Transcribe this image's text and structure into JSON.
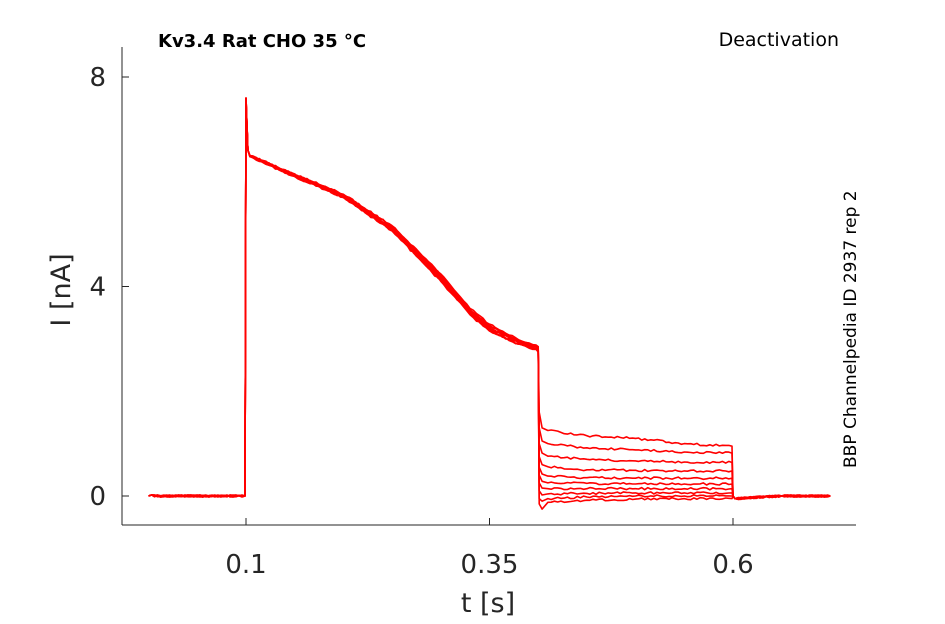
{
  "title_left": "Kv3.4  Rat  CHO  35 °C",
  "title_right": "Deactivation",
  "side_label": "BBP Channelpedia ID 2937 rep 2",
  "colors": {
    "trace": "#ff0000",
    "axis": "#262626"
  },
  "chart_data": {
    "type": "line",
    "xlabel": "t [s]",
    "ylabel": "I [nA]",
    "xlim": [
      -0.03,
      0.72
    ],
    "ylim": [
      -0.6,
      8.6
    ],
    "xticks": [
      0.1,
      0.35,
      0.6
    ],
    "xtick_labels": [
      "0.1",
      "0.35",
      "0.6"
    ],
    "yticks": [
      0,
      4,
      8
    ],
    "ytick_labels": [
      "0",
      "4",
      "8"
    ],
    "grid": false,
    "legend": "none",
    "series": [
      {
        "x": [
          0.0,
          0.099,
          0.1,
          0.102,
          0.104,
          0.15,
          0.2,
          0.25,
          0.3,
          0.33,
          0.35,
          0.38,
          0.398,
          0.4,
          0.401,
          0.404,
          0.41,
          0.45,
          0.5,
          0.55,
          0.599,
          0.6,
          0.602,
          0.65,
          0.7
        ],
        "y": [
          0.0,
          0.0,
          7.6,
          6.6,
          6.5,
          6.15,
          5.75,
          5.15,
          4.2,
          3.55,
          3.25,
          2.95,
          2.85,
          2.8,
          1.6,
          1.3,
          1.25,
          1.15,
          1.1,
          1.0,
          0.95,
          0.0,
          -0.05,
          0.0,
          0.0
        ]
      },
      {
        "x": [
          0.0,
          0.099,
          0.1,
          0.102,
          0.104,
          0.15,
          0.2,
          0.25,
          0.3,
          0.33,
          0.35,
          0.38,
          0.398,
          0.4,
          0.401,
          0.404,
          0.41,
          0.45,
          0.5,
          0.55,
          0.599,
          0.6,
          0.602,
          0.65,
          0.7
        ],
        "y": [
          0.0,
          0.0,
          7.5,
          6.6,
          6.5,
          6.12,
          5.72,
          5.1,
          4.15,
          3.5,
          3.2,
          2.95,
          2.85,
          2.8,
          1.3,
          1.05,
          1.0,
          0.92,
          0.88,
          0.84,
          0.82,
          0.0,
          -0.05,
          0.0,
          0.0
        ]
      },
      {
        "x": [
          0.0,
          0.099,
          0.1,
          0.102,
          0.104,
          0.15,
          0.2,
          0.25,
          0.3,
          0.33,
          0.35,
          0.38,
          0.398,
          0.4,
          0.401,
          0.404,
          0.41,
          0.45,
          0.5,
          0.55,
          0.599,
          0.6,
          0.602,
          0.65,
          0.7
        ],
        "y": [
          0.0,
          0.0,
          7.6,
          6.6,
          6.48,
          6.1,
          5.7,
          5.08,
          4.12,
          3.48,
          3.15,
          2.9,
          2.8,
          2.75,
          1.0,
          0.82,
          0.76,
          0.7,
          0.67,
          0.65,
          0.64,
          0.0,
          -0.05,
          0.0,
          0.0
        ]
      },
      {
        "x": [
          0.0,
          0.099,
          0.1,
          0.102,
          0.104,
          0.15,
          0.2,
          0.25,
          0.3,
          0.33,
          0.35,
          0.38,
          0.398,
          0.4,
          0.401,
          0.404,
          0.41,
          0.45,
          0.5,
          0.55,
          0.599,
          0.6,
          0.602,
          0.65,
          0.7
        ],
        "y": [
          0.0,
          0.0,
          7.55,
          6.6,
          6.5,
          6.12,
          5.74,
          5.12,
          4.18,
          3.52,
          3.22,
          2.95,
          2.85,
          2.8,
          0.75,
          0.6,
          0.56,
          0.5,
          0.49,
          0.48,
          0.48,
          0.0,
          -0.05,
          0.0,
          0.0
        ]
      },
      {
        "x": [
          0.0,
          0.099,
          0.1,
          0.102,
          0.104,
          0.15,
          0.2,
          0.25,
          0.3,
          0.33,
          0.35,
          0.38,
          0.398,
          0.4,
          0.401,
          0.404,
          0.41,
          0.45,
          0.5,
          0.55,
          0.599,
          0.6,
          0.602,
          0.65,
          0.7
        ],
        "y": [
          0.0,
          0.0,
          7.6,
          6.6,
          6.5,
          6.14,
          5.75,
          5.14,
          4.22,
          3.56,
          3.26,
          2.98,
          2.88,
          2.85,
          0.55,
          0.42,
          0.38,
          0.35,
          0.34,
          0.34,
          0.34,
          0.0,
          -0.05,
          0.0,
          0.0
        ]
      },
      {
        "x": [
          0.0,
          0.099,
          0.1,
          0.102,
          0.104,
          0.15,
          0.2,
          0.25,
          0.3,
          0.33,
          0.35,
          0.38,
          0.398,
          0.4,
          0.401,
          0.404,
          0.41,
          0.45,
          0.5,
          0.55,
          0.599,
          0.6,
          0.602,
          0.65,
          0.7
        ],
        "y": [
          0.0,
          0.0,
          7.5,
          6.6,
          6.48,
          6.1,
          5.7,
          5.06,
          4.1,
          3.46,
          3.15,
          2.9,
          2.8,
          2.75,
          0.4,
          0.28,
          0.25,
          0.24,
          0.23,
          0.23,
          0.23,
          0.0,
          -0.05,
          0.0,
          0.0
        ]
      },
      {
        "x": [
          0.0,
          0.099,
          0.1,
          0.102,
          0.104,
          0.15,
          0.2,
          0.25,
          0.3,
          0.33,
          0.35,
          0.38,
          0.398,
          0.4,
          0.401,
          0.404,
          0.41,
          0.45,
          0.5,
          0.55,
          0.599,
          0.6,
          0.602,
          0.65,
          0.7
        ],
        "y": [
          0.0,
          0.0,
          7.6,
          6.6,
          6.5,
          6.13,
          5.73,
          5.1,
          4.16,
          3.5,
          3.2,
          2.92,
          2.82,
          2.78,
          0.25,
          0.15,
          0.14,
          0.14,
          0.14,
          0.14,
          0.14,
          0.0,
          -0.05,
          0.0,
          0.0
        ]
      },
      {
        "x": [
          0.0,
          0.099,
          0.1,
          0.102,
          0.104,
          0.15,
          0.2,
          0.25,
          0.3,
          0.33,
          0.35,
          0.38,
          0.398,
          0.4,
          0.401,
          0.404,
          0.41,
          0.45,
          0.5,
          0.55,
          0.599,
          0.6,
          0.602,
          0.65,
          0.7
        ],
        "y": [
          0.0,
          0.0,
          7.55,
          6.6,
          6.5,
          6.12,
          5.74,
          5.12,
          4.2,
          3.54,
          3.24,
          2.96,
          2.86,
          2.82,
          0.1,
          0.02,
          0.04,
          0.05,
          0.06,
          0.06,
          0.06,
          0.0,
          -0.05,
          0.0,
          0.0
        ]
      },
      {
        "x": [
          0.0,
          0.099,
          0.1,
          0.102,
          0.104,
          0.15,
          0.2,
          0.25,
          0.3,
          0.33,
          0.35,
          0.38,
          0.398,
          0.4,
          0.401,
          0.404,
          0.41,
          0.45,
          0.5,
          0.55,
          0.599,
          0.6,
          0.602,
          0.65,
          0.7
        ],
        "y": [
          0.0,
          0.0,
          7.6,
          6.6,
          6.48,
          6.1,
          5.7,
          5.08,
          4.12,
          3.48,
          3.17,
          2.9,
          2.8,
          2.76,
          -0.05,
          -0.1,
          -0.05,
          -0.02,
          0.0,
          0.0,
          0.0,
          0.0,
          -0.05,
          0.0,
          0.0
        ]
      },
      {
        "x": [
          0.0,
          0.099,
          0.1,
          0.102,
          0.104,
          0.15,
          0.2,
          0.25,
          0.3,
          0.33,
          0.35,
          0.38,
          0.398,
          0.4,
          0.401,
          0.404,
          0.41,
          0.45,
          0.5,
          0.55,
          0.599,
          0.6,
          0.602,
          0.65,
          0.7
        ],
        "y": [
          0.0,
          0.0,
          7.55,
          6.6,
          6.5,
          6.14,
          5.76,
          5.16,
          4.24,
          3.58,
          3.28,
          2.98,
          2.88,
          2.85,
          -0.15,
          -0.25,
          -0.12,
          -0.08,
          -0.06,
          -0.05,
          -0.05,
          0.0,
          -0.05,
          0.0,
          0.0
        ]
      }
    ]
  }
}
